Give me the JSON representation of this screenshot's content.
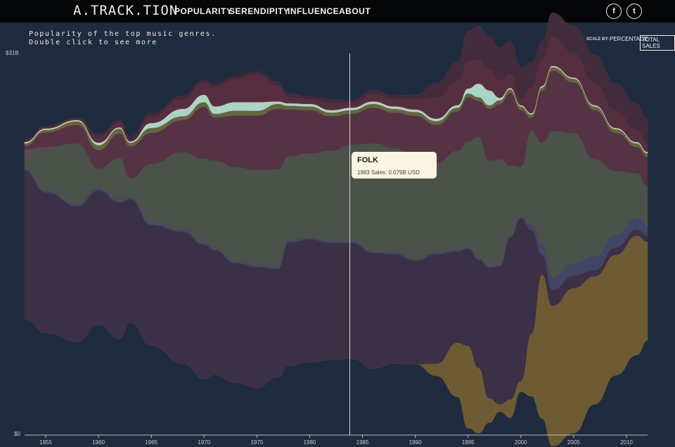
{
  "header": {
    "logo": "A.TRACK.TION",
    "nav": [
      {
        "id": "popularity",
        "label": "POPULARITY"
      },
      {
        "id": "serendipity",
        "label": "SERENDIPITY"
      },
      {
        "id": "influence",
        "label": "INFLUENCE"
      },
      {
        "id": "about",
        "label": "ABOUT"
      }
    ],
    "social": [
      {
        "id": "facebook",
        "label": "f",
        "icon": "facebook-icon"
      },
      {
        "id": "twitter",
        "label": "t",
        "icon": "twitter-icon"
      }
    ]
  },
  "intro": {
    "line1": "Popularity of the top music genres.",
    "line2": "Double click to see more"
  },
  "scale": {
    "label": "SCALE BY:",
    "options": [
      "PERCENTAGE",
      "TOTAL SALES"
    ],
    "selected": "TOTAL SALES"
  },
  "tooltip": {
    "title": "FOLK",
    "body": "1983 Sales: 0.079B USD"
  },
  "chart_data": {
    "type": "area",
    "years": [
      1953,
      1955,
      1958,
      1960,
      1962,
      1963,
      1965,
      1968,
      1970,
      1971,
      1973,
      1975,
      1977,
      1978,
      1980,
      1982,
      1984,
      1986,
      1988,
      1990,
      1992,
      1994,
      1995,
      1996,
      1997,
      1998,
      1999,
      2000,
      2001,
      2002,
      2003,
      2005,
      2007,
      2009,
      2011,
      2012
    ],
    "y_axis": {
      "top_label": "$31B",
      "bottom_label": "$0",
      "ylim": [
        0,
        31
      ]
    },
    "x_ticks": [
      1955,
      1960,
      1965,
      1970,
      1975,
      1980,
      1985,
      1990,
      1995,
      2000,
      2005,
      2010
    ],
    "cursor_year": 1983.8,
    "series": [
      {
        "color": "#6e5b34",
        "values": [
          0,
          0,
          0,
          0,
          0,
          0,
          0,
          0,
          0,
          0,
          0,
          0,
          0,
          0,
          0,
          0,
          0,
          0,
          0,
          0,
          1,
          4.4,
          6.7,
          5.3,
          2.0,
          0.6,
          1.5,
          0.9,
          5.1,
          11.7,
          11.4,
          11.8,
          10.4,
          9.8,
          9.7,
          8.0
        ]
      },
      {
        "color": "#3c3047",
        "values": [
          12.1,
          11.4,
          11.0,
          10.9,
          11.1,
          10.0,
          9.8,
          10.7,
          10.9,
          10.1,
          9.7,
          9.8,
          8.8,
          10.0,
          10.0,
          9.5,
          9.4,
          9.4,
          8.9,
          8.4,
          8.9,
          7.4,
          7.9,
          8.8,
          10.6,
          11.2,
          13.2,
          13.2,
          8.4,
          1.6,
          1.3,
          1.0,
          0.5,
          0.6,
          0.5,
          0.5
        ]
      },
      {
        "color": "#414566",
        "values": [
          0.1,
          0.1,
          0.1,
          0.2,
          0.1,
          0.1,
          0.1,
          0.1,
          0.1,
          0.1,
          0.1,
          0.1,
          0.1,
          0.1,
          0.1,
          0.1,
          0.1,
          0.1,
          0.1,
          0.1,
          0.1,
          0.1,
          0.1,
          0.1,
          0.1,
          0.1,
          0.1,
          0.1,
          0.4,
          0.8,
          1.0,
          1.0,
          1.1,
          1.0,
          0.9,
          0.8
        ]
      },
      {
        "color": "#4a4e55",
        "values": [
          0.2,
          0.2,
          0.2,
          0.2,
          0.2,
          0.3,
          0.3,
          0.3,
          0.3,
          0.2,
          0.3,
          0.2,
          0.2,
          0.1,
          0.1,
          0.1,
          0.1,
          0.1,
          0.1,
          0.1,
          0.1,
          0.1,
          0.1,
          0.1,
          0.1,
          0.1,
          0.1,
          0.1,
          0.1,
          0.1,
          0.1,
          0.1,
          0.1,
          0.1,
          0.1,
          0.1
        ]
      },
      {
        "color": "#4a5249",
        "values": [
          0.6,
          3.4,
          4.8,
          1.4,
          3.3,
          1.3,
          4.6,
          6.1,
          6.6,
          7.0,
          7.4,
          7.6,
          7.8,
          6.8,
          6.8,
          7.3,
          7.8,
          8.7,
          8.4,
          8.4,
          7.2,
          8.0,
          8.5,
          9.8,
          8.5,
          8.5,
          5.6,
          4.0,
          7.6,
          8.2,
          11.8,
          10.5,
          7.8,
          5.1,
          3.6,
          3.1
        ]
      },
      {
        "color": "#5a4c55",
        "values": [
          0.8,
          0,
          0,
          0,
          0,
          0,
          0,
          0,
          0,
          0,
          0,
          0,
          0,
          0,
          0,
          0,
          0,
          0,
          0,
          0,
          0,
          0,
          0,
          0,
          0,
          0,
          0,
          0,
          0,
          0,
          0,
          0,
          0,
          0,
          0,
          0
        ]
      },
      {
        "color": "#563344",
        "values": [
          0.3,
          1.2,
          1.5,
          1.5,
          2.0,
          2.6,
          2.5,
          2.6,
          4.2,
          3.5,
          4.2,
          4.4,
          4.9,
          3.8,
          3.5,
          2.8,
          2.5,
          2.9,
          2.9,
          3.2,
          3.1,
          3.2,
          3.6,
          2.9,
          4.2,
          4.5,
          5.9,
          4.6,
          1.0,
          4.2,
          4.9,
          4.1,
          4.0,
          3.1,
          2.1,
          2.4
        ]
      },
      {
        "color": "#65653f",
        "values": [
          0.2,
          0.2,
          0.3,
          0.4,
          0.4,
          0.3,
          0.4,
          0.3,
          0.4,
          0.3,
          0.4,
          0.4,
          0.4,
          0.3,
          0.3,
          0.3,
          0.3,
          0.3,
          0.3,
          0.3,
          0.3,
          0.3,
          0.3,
          0.3,
          0.3,
          0.3,
          0.3,
          0.3,
          0.3,
          0.3,
          0.3,
          0.3,
          0.3,
          0.3,
          0.3,
          0.3
        ]
      },
      {
        "color": "#a9d5c8",
        "values": [
          0,
          0,
          0,
          0.1,
          0,
          0,
          0.3,
          0.5,
          0.5,
          0.5,
          0.6,
          0.6,
          0.1,
          0.1,
          0.1,
          0.1,
          0.1,
          0.1,
          0.1,
          0.1,
          0.1,
          0.1,
          0.3,
          1.0,
          1.1,
          0.1,
          0,
          0,
          0,
          0,
          0,
          0,
          0,
          0,
          0,
          0
        ]
      },
      {
        "color": "#c9c9b9",
        "values": [
          0.1,
          0.1,
          0.1,
          0.1,
          0.1,
          0.1,
          0.1,
          0.1,
          0.1,
          0.1,
          0.1,
          0.1,
          0.1,
          0.1,
          0.1,
          0.1,
          0.1,
          0.1,
          0.1,
          0.1,
          0.1,
          0.1,
          0.1,
          0.1,
          0.1,
          0.1,
          0.1,
          0.1,
          0.1,
          0.1,
          0.1,
          0.1,
          0.1,
          0.1,
          0.1,
          0.1
        ]
      },
      {
        "color": "#552f40",
        "values": [
          0.1,
          0.1,
          0.1,
          0.5,
          0.4,
          0.1,
          0.5,
          0.8,
          1.0,
          1.6,
          1.9,
          2.3,
          1.3,
          0.5,
          0.4,
          0.6,
          0.4,
          0.6,
          0.6,
          0.9,
          1.7,
          2.0,
          2.2,
          2.0,
          1.7,
          1.4,
          1.2,
          0.5,
          2.1,
          2.2,
          2.4,
          2.0,
          1.8,
          1.4,
          1.0,
          0.7
        ]
      },
      {
        "color": "#422c3c",
        "values": [
          0.1,
          0.1,
          0.1,
          0.2,
          0.2,
          0.3,
          0.3,
          0.3,
          0.2,
          0.2,
          0.2,
          0.2,
          0.3,
          0.3,
          0.2,
          0.3,
          0.2,
          0.3,
          0.3,
          0.3,
          1.2,
          1.5,
          2.5,
          2.7,
          2.7,
          2.7,
          2.6,
          2.6,
          2.0,
          1.5,
          1.9,
          2.2,
          2.3,
          2.2,
          2.1,
          2.0
        ]
      }
    ]
  }
}
